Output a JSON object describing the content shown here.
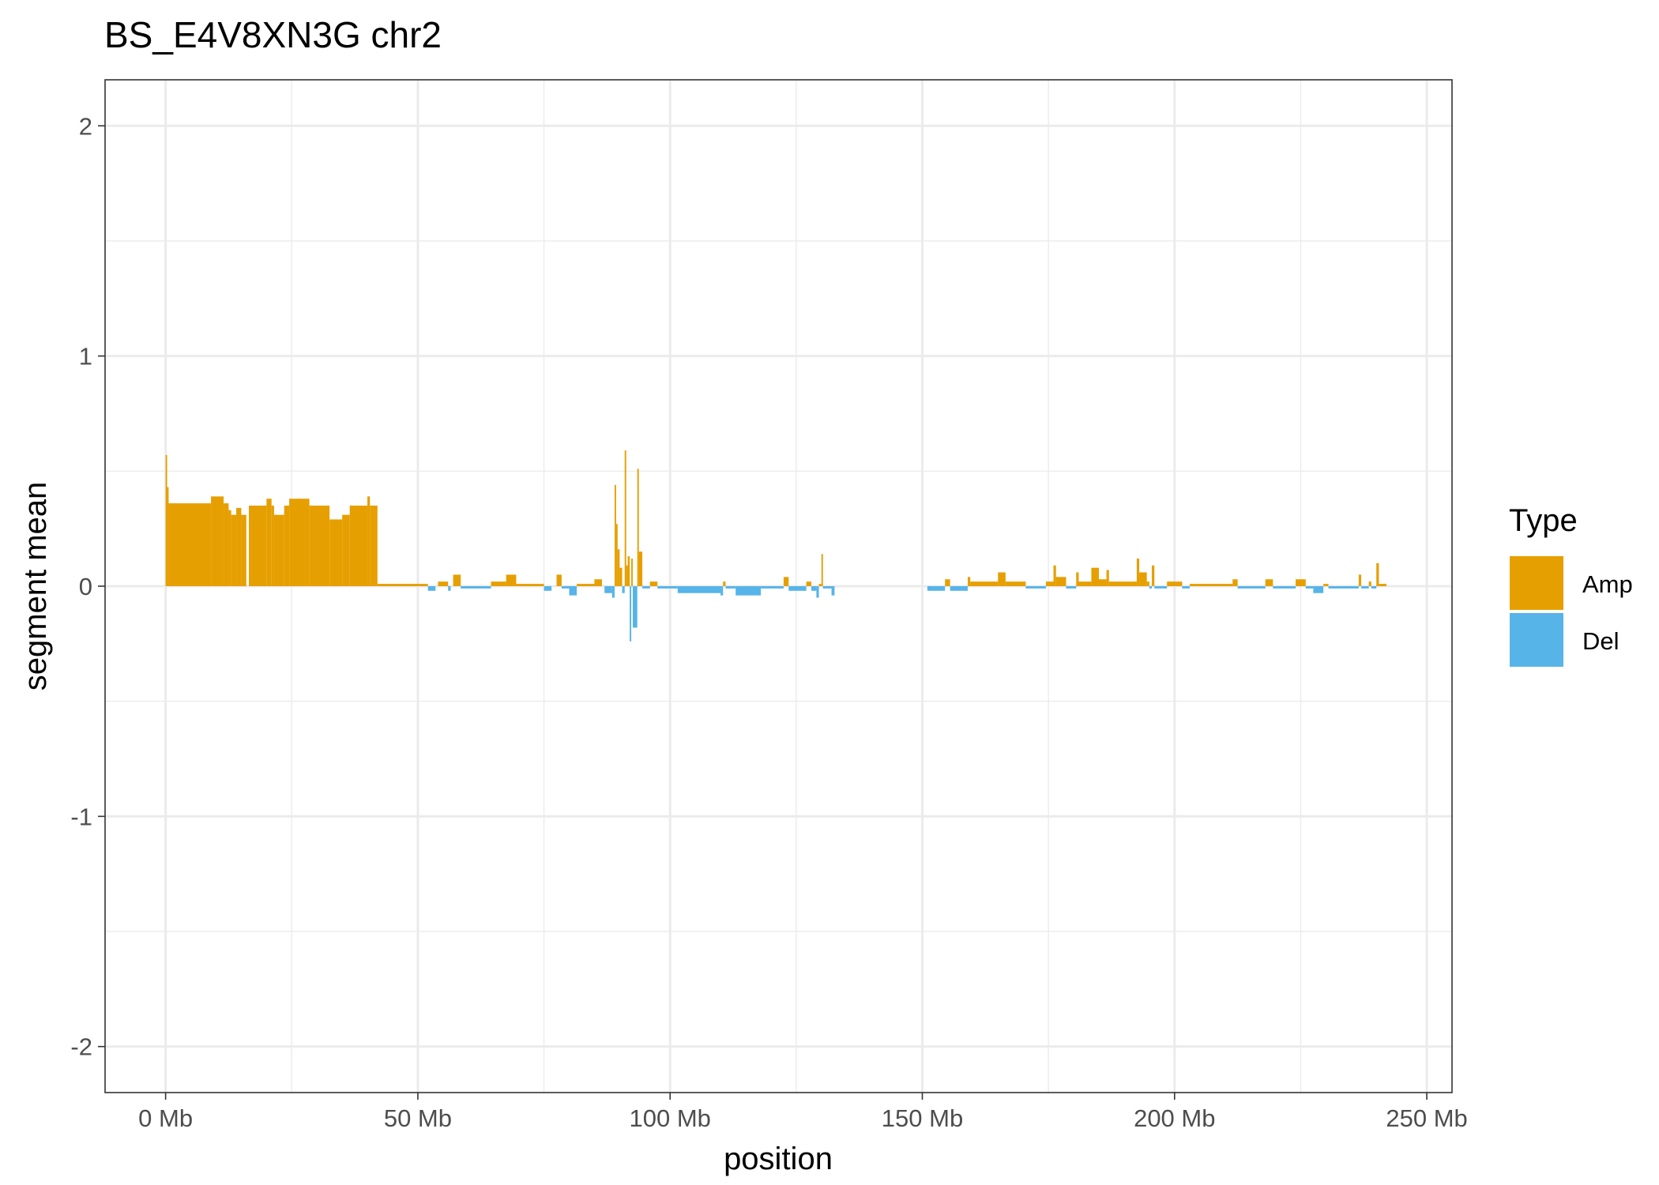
{
  "chart_data": {
    "type": "bar",
    "title": "BS_E4V8XN3G chr2",
    "xlabel": "position",
    "ylabel": "segment mean",
    "xlim": [
      -12,
      255
    ],
    "ylim": [
      -2.2,
      2.2
    ],
    "x_unit": "Mb",
    "x_ticks": [
      0,
      50,
      100,
      150,
      200,
      250
    ],
    "x_tick_labels": [
      "0 Mb",
      "50 Mb",
      "100 Mb",
      "150 Mb",
      "200 Mb",
      "250 Mb"
    ],
    "y_ticks": [
      -2,
      -1,
      0,
      1,
      2
    ],
    "y_tick_labels": [
      "-2",
      "-1",
      "0",
      "1",
      "2"
    ],
    "grid": true,
    "legend": {
      "title": "Type",
      "position": "right",
      "entries": [
        {
          "name": "Amp",
          "color": "#E69F00"
        },
        {
          "name": "Del",
          "color": "#56B4E9"
        }
      ]
    },
    "segments": [
      {
        "start": 0.0,
        "end": 0.3,
        "value": 0.57,
        "type": "Amp"
      },
      {
        "start": 0.3,
        "end": 0.6,
        "value": 0.43,
        "type": "Amp"
      },
      {
        "start": 0.6,
        "end": 9.0,
        "value": 0.36,
        "type": "Amp"
      },
      {
        "start": 9.0,
        "end": 11.5,
        "value": 0.39,
        "type": "Amp"
      },
      {
        "start": 11.5,
        "end": 12.5,
        "value": 0.36,
        "type": "Amp"
      },
      {
        "start": 12.5,
        "end": 13.0,
        "value": 0.33,
        "type": "Amp"
      },
      {
        "start": 13.0,
        "end": 14.0,
        "value": 0.31,
        "type": "Amp"
      },
      {
        "start": 14.0,
        "end": 15.0,
        "value": 0.34,
        "type": "Amp"
      },
      {
        "start": 15.0,
        "end": 16.0,
        "value": 0.31,
        "type": "Amp"
      },
      {
        "start": 16.5,
        "end": 20.0,
        "value": 0.35,
        "type": "Amp"
      },
      {
        "start": 20.0,
        "end": 21.0,
        "value": 0.38,
        "type": "Amp"
      },
      {
        "start": 21.0,
        "end": 21.5,
        "value": 0.35,
        "type": "Amp"
      },
      {
        "start": 21.5,
        "end": 23.5,
        "value": 0.31,
        "type": "Amp"
      },
      {
        "start": 23.5,
        "end": 24.5,
        "value": 0.35,
        "type": "Amp"
      },
      {
        "start": 24.5,
        "end": 28.5,
        "value": 0.38,
        "type": "Amp"
      },
      {
        "start": 28.5,
        "end": 32.5,
        "value": 0.35,
        "type": "Amp"
      },
      {
        "start": 32.5,
        "end": 35.0,
        "value": 0.29,
        "type": "Amp"
      },
      {
        "start": 35.0,
        "end": 36.5,
        "value": 0.31,
        "type": "Amp"
      },
      {
        "start": 36.5,
        "end": 40.0,
        "value": 0.35,
        "type": "Amp"
      },
      {
        "start": 40.0,
        "end": 40.5,
        "value": 0.39,
        "type": "Amp"
      },
      {
        "start": 40.5,
        "end": 42.0,
        "value": 0.35,
        "type": "Amp"
      },
      {
        "start": 42.0,
        "end": 52.0,
        "value": 0.01,
        "type": "Amp"
      },
      {
        "start": 52.0,
        "end": 53.5,
        "value": -0.02,
        "type": "Del"
      },
      {
        "start": 54.0,
        "end": 56.0,
        "value": 0.02,
        "type": "Amp"
      },
      {
        "start": 56.0,
        "end": 56.5,
        "value": -0.02,
        "type": "Del"
      },
      {
        "start": 57.0,
        "end": 58.5,
        "value": 0.05,
        "type": "Amp"
      },
      {
        "start": 58.5,
        "end": 64.5,
        "value": -0.01,
        "type": "Del"
      },
      {
        "start": 64.5,
        "end": 67.5,
        "value": 0.02,
        "type": "Amp"
      },
      {
        "start": 67.5,
        "end": 69.5,
        "value": 0.05,
        "type": "Amp"
      },
      {
        "start": 69.5,
        "end": 75.0,
        "value": 0.01,
        "type": "Amp"
      },
      {
        "start": 75.0,
        "end": 76.5,
        "value": -0.02,
        "type": "Del"
      },
      {
        "start": 77.5,
        "end": 78.5,
        "value": 0.05,
        "type": "Amp"
      },
      {
        "start": 78.5,
        "end": 80.0,
        "value": -0.01,
        "type": "Del"
      },
      {
        "start": 80.0,
        "end": 81.5,
        "value": -0.04,
        "type": "Del"
      },
      {
        "start": 81.5,
        "end": 85.0,
        "value": 0.01,
        "type": "Amp"
      },
      {
        "start": 85.0,
        "end": 86.5,
        "value": 0.03,
        "type": "Amp"
      },
      {
        "start": 87.0,
        "end": 88.5,
        "value": -0.03,
        "type": "Del"
      },
      {
        "start": 88.5,
        "end": 89.0,
        "value": -0.05,
        "type": "Del"
      },
      {
        "start": 89.0,
        "end": 89.3,
        "value": 0.44,
        "type": "Amp"
      },
      {
        "start": 89.3,
        "end": 89.6,
        "value": 0.27,
        "type": "Amp"
      },
      {
        "start": 89.6,
        "end": 90.0,
        "value": 0.16,
        "type": "Amp"
      },
      {
        "start": 90.0,
        "end": 90.5,
        "value": 0.08,
        "type": "Amp"
      },
      {
        "start": 90.5,
        "end": 91.0,
        "value": -0.03,
        "type": "Del"
      },
      {
        "start": 91.0,
        "end": 91.3,
        "value": 0.59,
        "type": "Amp"
      },
      {
        "start": 91.3,
        "end": 91.6,
        "value": 0.09,
        "type": "Amp"
      },
      {
        "start": 91.6,
        "end": 92.0,
        "value": 0.13,
        "type": "Amp"
      },
      {
        "start": 92.0,
        "end": 92.3,
        "value": -0.24,
        "type": "Del"
      },
      {
        "start": 92.3,
        "end": 92.6,
        "value": 0.12,
        "type": "Amp"
      },
      {
        "start": 92.6,
        "end": 93.5,
        "value": -0.18,
        "type": "Del"
      },
      {
        "start": 93.5,
        "end": 93.8,
        "value": 0.51,
        "type": "Amp"
      },
      {
        "start": 93.8,
        "end": 94.5,
        "value": 0.15,
        "type": "Amp"
      },
      {
        "start": 94.5,
        "end": 96.0,
        "value": -0.01,
        "type": "Del"
      },
      {
        "start": 96.0,
        "end": 97.5,
        "value": 0.02,
        "type": "Amp"
      },
      {
        "start": 97.5,
        "end": 101.5,
        "value": -0.01,
        "type": "Del"
      },
      {
        "start": 101.5,
        "end": 110.0,
        "value": -0.03,
        "type": "Del"
      },
      {
        "start": 110.0,
        "end": 110.5,
        "value": -0.04,
        "type": "Del"
      },
      {
        "start": 110.5,
        "end": 111.0,
        "value": 0.02,
        "type": "Amp"
      },
      {
        "start": 111.0,
        "end": 113.0,
        "value": -0.01,
        "type": "Del"
      },
      {
        "start": 113.0,
        "end": 118.0,
        "value": -0.04,
        "type": "Del"
      },
      {
        "start": 118.0,
        "end": 122.5,
        "value": -0.01,
        "type": "Del"
      },
      {
        "start": 122.5,
        "end": 123.5,
        "value": 0.04,
        "type": "Amp"
      },
      {
        "start": 123.5,
        "end": 127.0,
        "value": -0.02,
        "type": "Del"
      },
      {
        "start": 127.0,
        "end": 128.0,
        "value": 0.02,
        "type": "Amp"
      },
      {
        "start": 128.0,
        "end": 129.0,
        "value": -0.02,
        "type": "Del"
      },
      {
        "start": 129.0,
        "end": 129.5,
        "value": -0.05,
        "type": "Del"
      },
      {
        "start": 129.5,
        "end": 130.0,
        "value": 0.01,
        "type": "Amp"
      },
      {
        "start": 130.0,
        "end": 130.3,
        "value": 0.14,
        "type": "Amp"
      },
      {
        "start": 130.3,
        "end": 132.0,
        "value": -0.01,
        "type": "Del"
      },
      {
        "start": 132.0,
        "end": 132.6,
        "value": -0.04,
        "type": "Del"
      },
      {
        "start": 151.0,
        "end": 154.5,
        "value": -0.02,
        "type": "Del"
      },
      {
        "start": 154.5,
        "end": 155.5,
        "value": 0.03,
        "type": "Amp"
      },
      {
        "start": 155.5,
        "end": 159.0,
        "value": -0.02,
        "type": "Del"
      },
      {
        "start": 159.0,
        "end": 159.5,
        "value": 0.04,
        "type": "Amp"
      },
      {
        "start": 159.5,
        "end": 165.0,
        "value": 0.02,
        "type": "Amp"
      },
      {
        "start": 165.0,
        "end": 166.5,
        "value": 0.06,
        "type": "Amp"
      },
      {
        "start": 166.5,
        "end": 170.5,
        "value": 0.02,
        "type": "Amp"
      },
      {
        "start": 170.5,
        "end": 174.5,
        "value": -0.01,
        "type": "Del"
      },
      {
        "start": 174.5,
        "end": 176.0,
        "value": 0.02,
        "type": "Amp"
      },
      {
        "start": 176.0,
        "end": 176.5,
        "value": 0.09,
        "type": "Amp"
      },
      {
        "start": 176.5,
        "end": 178.5,
        "value": 0.04,
        "type": "Amp"
      },
      {
        "start": 178.5,
        "end": 180.5,
        "value": -0.01,
        "type": "Del"
      },
      {
        "start": 180.5,
        "end": 181.0,
        "value": 0.06,
        "type": "Amp"
      },
      {
        "start": 181.0,
        "end": 183.5,
        "value": 0.02,
        "type": "Amp"
      },
      {
        "start": 183.5,
        "end": 185.0,
        "value": 0.08,
        "type": "Amp"
      },
      {
        "start": 185.0,
        "end": 186.5,
        "value": 0.03,
        "type": "Amp"
      },
      {
        "start": 186.5,
        "end": 187.0,
        "value": 0.07,
        "type": "Amp"
      },
      {
        "start": 187.0,
        "end": 192.5,
        "value": 0.02,
        "type": "Amp"
      },
      {
        "start": 192.5,
        "end": 193.0,
        "value": 0.12,
        "type": "Amp"
      },
      {
        "start": 193.0,
        "end": 194.5,
        "value": 0.06,
        "type": "Amp"
      },
      {
        "start": 194.5,
        "end": 195.0,
        "value": 0.02,
        "type": "Amp"
      },
      {
        "start": 195.0,
        "end": 195.5,
        "value": -0.01,
        "type": "Del"
      },
      {
        "start": 195.5,
        "end": 196.0,
        "value": 0.09,
        "type": "Amp"
      },
      {
        "start": 196.0,
        "end": 198.5,
        "value": -0.01,
        "type": "Del"
      },
      {
        "start": 198.5,
        "end": 201.5,
        "value": 0.02,
        "type": "Amp"
      },
      {
        "start": 201.5,
        "end": 203.0,
        "value": -0.01,
        "type": "Del"
      },
      {
        "start": 203.0,
        "end": 211.5,
        "value": 0.01,
        "type": "Amp"
      },
      {
        "start": 211.5,
        "end": 212.5,
        "value": 0.03,
        "type": "Amp"
      },
      {
        "start": 212.5,
        "end": 218.0,
        "value": -0.01,
        "type": "Del"
      },
      {
        "start": 218.0,
        "end": 219.5,
        "value": 0.03,
        "type": "Amp"
      },
      {
        "start": 219.5,
        "end": 224.0,
        "value": -0.01,
        "type": "Del"
      },
      {
        "start": 224.0,
        "end": 226.0,
        "value": 0.03,
        "type": "Amp"
      },
      {
        "start": 226.0,
        "end": 227.5,
        "value": -0.01,
        "type": "Del"
      },
      {
        "start": 227.5,
        "end": 229.5,
        "value": -0.03,
        "type": "Del"
      },
      {
        "start": 229.5,
        "end": 230.5,
        "value": 0.01,
        "type": "Amp"
      },
      {
        "start": 230.5,
        "end": 236.5,
        "value": -0.01,
        "type": "Del"
      },
      {
        "start": 236.5,
        "end": 237.0,
        "value": 0.05,
        "type": "Amp"
      },
      {
        "start": 237.0,
        "end": 238.5,
        "value": -0.01,
        "type": "Del"
      },
      {
        "start": 238.5,
        "end": 239.0,
        "value": 0.02,
        "type": "Amp"
      },
      {
        "start": 239.0,
        "end": 240.0,
        "value": -0.01,
        "type": "Del"
      },
      {
        "start": 240.0,
        "end": 240.5,
        "value": 0.1,
        "type": "Amp"
      },
      {
        "start": 240.5,
        "end": 242.0,
        "value": 0.01,
        "type": "Amp"
      }
    ]
  }
}
